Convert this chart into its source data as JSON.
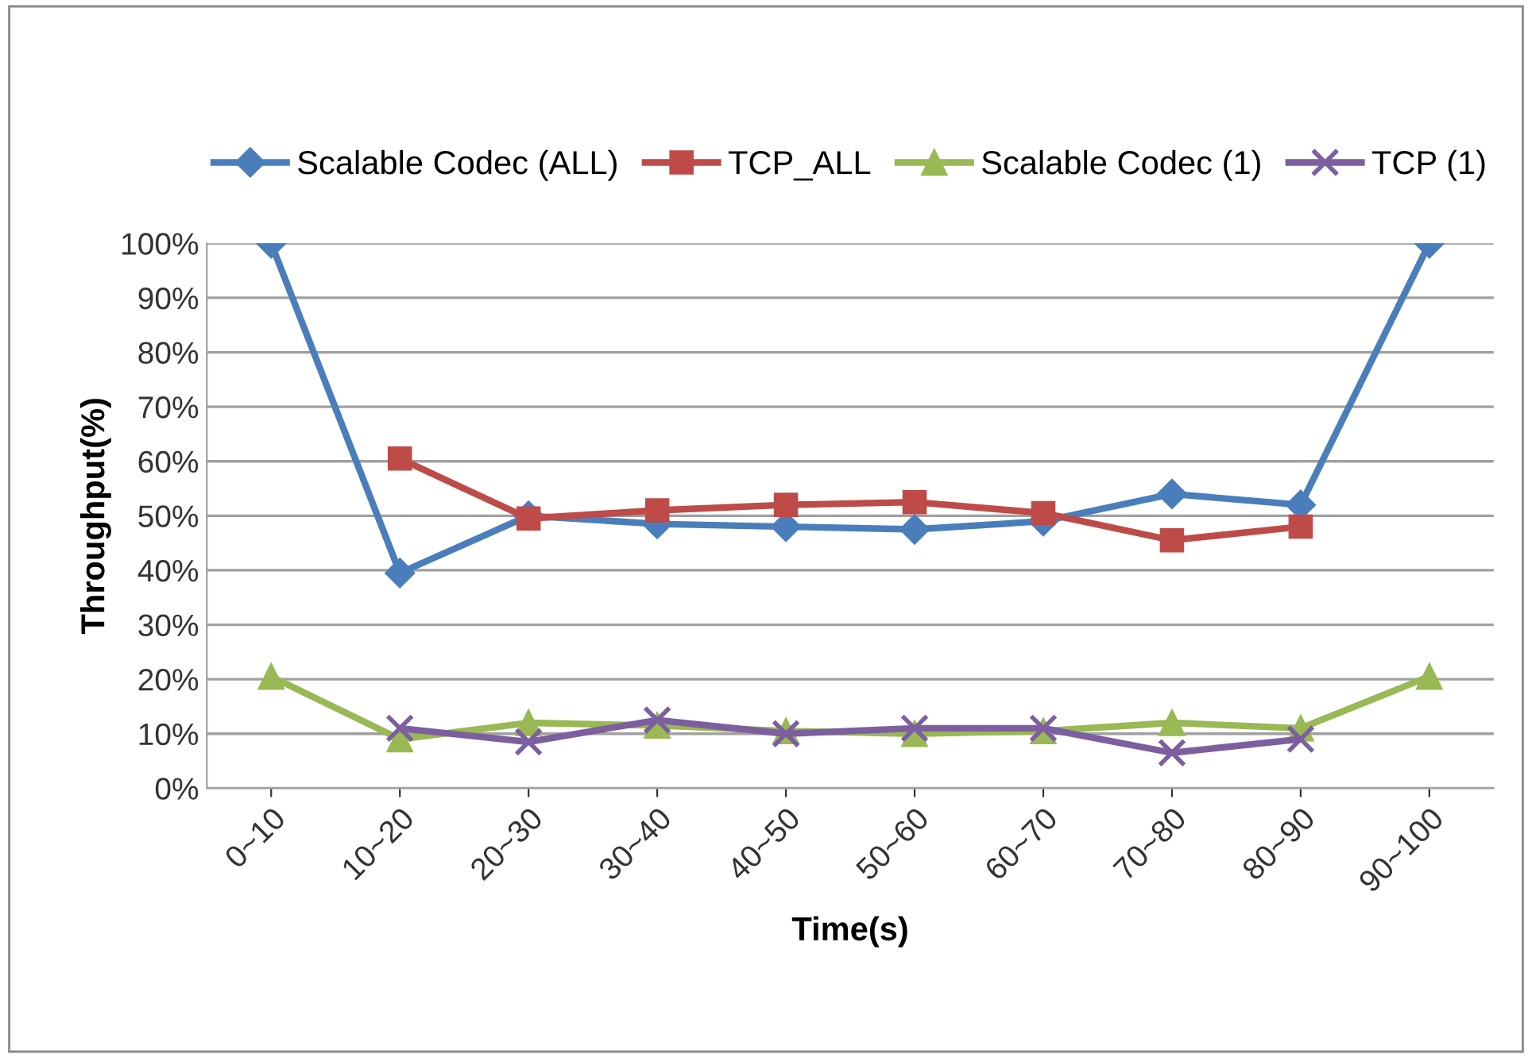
{
  "chart_data": {
    "type": "line",
    "xlabel": "Time(s)",
    "ylabel": "Throughput(%)",
    "categories": [
      "0~10",
      "10~20",
      "20~30",
      "30~40",
      "40~50",
      "50~60",
      "60~70",
      "70~80",
      "80~90",
      "90~100"
    ],
    "series": [
      {
        "name": "Scalable Codec (ALL)",
        "color": "#4a7ebb",
        "marker": "diamond",
        "values": [
          100,
          39.5,
          50,
          48.5,
          48,
          47.5,
          49,
          54,
          52,
          100
        ]
      },
      {
        "name": "TCP_ALL",
        "color": "#be4b48",
        "marker": "square",
        "values": [
          null,
          60.5,
          49.5,
          51,
          52,
          52.5,
          50.5,
          45.5,
          48,
          null
        ]
      },
      {
        "name": "Scalable Codec (1)",
        "color": "#98b954",
        "marker": "triangle",
        "values": [
          20.5,
          9,
          12,
          11.5,
          10.5,
          10,
          10.5,
          12,
          11,
          20.5
        ]
      },
      {
        "name": "TCP (1)",
        "color": "#7d5fa0",
        "marker": "cross",
        "values": [
          null,
          11,
          8.5,
          12.5,
          10,
          11,
          11,
          6.5,
          9,
          null
        ]
      }
    ],
    "ylim": [
      0,
      100
    ],
    "yticks": [
      {
        "value": 0,
        "label": "0%"
      },
      {
        "value": 10,
        "label": "10%"
      },
      {
        "value": 20,
        "label": "20%"
      },
      {
        "value": 30,
        "label": "30%"
      },
      {
        "value": 40,
        "label": "40%"
      },
      {
        "value": 50,
        "label": "50%"
      },
      {
        "value": 60,
        "label": "60%"
      },
      {
        "value": 70,
        "label": "70%"
      },
      {
        "value": 80,
        "label": "80%"
      },
      {
        "value": 90,
        "label": "90%"
      },
      {
        "value": 100,
        "label": "100%"
      }
    ],
    "grid": "y",
    "legend": "top",
    "line_style": "solid"
  }
}
